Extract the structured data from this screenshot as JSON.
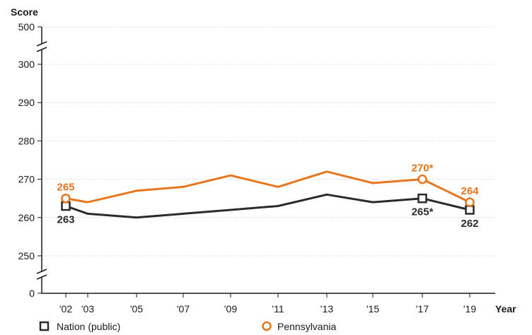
{
  "chart_data": {
    "type": "line",
    "ylabel": "Score",
    "xlabel": "Year",
    "y_ticks_top": [
      "500"
    ],
    "y_ticks": [
      250,
      260,
      270,
      280,
      290,
      300
    ],
    "y_ticks_bottom": [
      "0"
    ],
    "ylim": [
      245,
      305
    ],
    "y_axis_broken": true,
    "grid": true,
    "x": [
      "'02",
      "'03",
      "'05",
      "'07",
      "'09",
      "'11",
      "'13",
      "'15",
      "'17",
      "'19"
    ],
    "series": [
      {
        "name": "Nation (public)",
        "color": "#2b2b2b",
        "marker": "square",
        "values": [
          263,
          261,
          260,
          261,
          262,
          263,
          266,
          264,
          265,
          262
        ],
        "labels": [
          {
            "index": 0,
            "text": "263",
            "place": "below"
          },
          {
            "index": 8,
            "text": "265*",
            "place": "below"
          },
          {
            "index": 9,
            "text": "262",
            "place": "below"
          }
        ]
      },
      {
        "name": "Pennsylvania",
        "color": "#e8761e",
        "marker": "circle",
        "values": [
          265,
          264,
          267,
          268,
          271,
          268,
          272,
          269,
          270,
          264
        ],
        "labels": [
          {
            "index": 0,
            "text": "265",
            "place": "above"
          },
          {
            "index": 8,
            "text": "270*",
            "place": "above"
          },
          {
            "index": 9,
            "text": "264",
            "place": "above"
          }
        ]
      }
    ],
    "legend": [
      "Nation (public)",
      "Pennsylvania"
    ],
    "legend_position": "bottom"
  }
}
